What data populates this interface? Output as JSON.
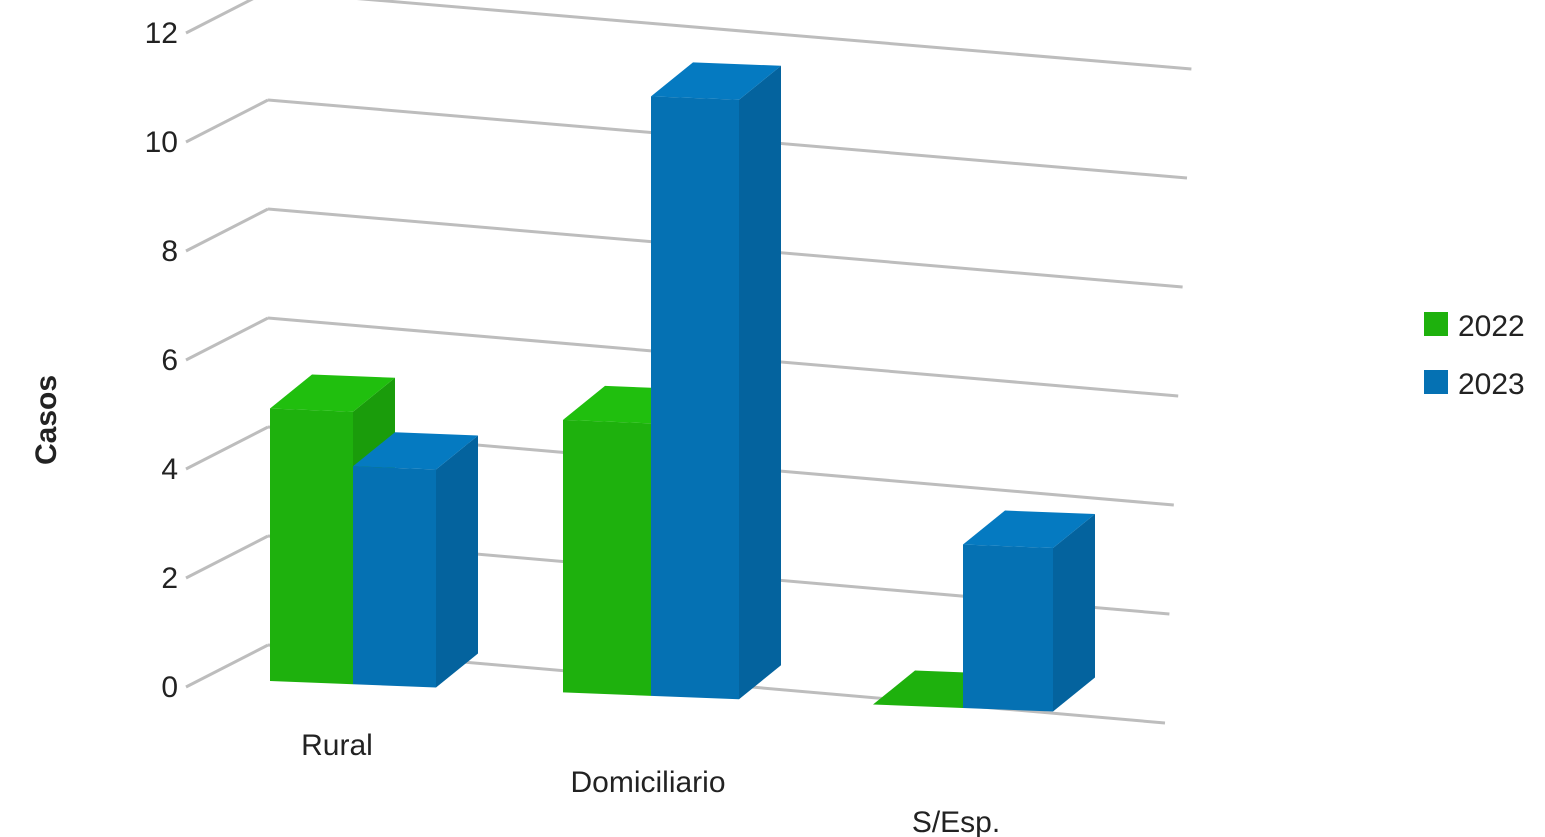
{
  "chart_data": {
    "type": "bar",
    "title": "",
    "xlabel": "",
    "ylabel": "Casos",
    "ylim": [
      0,
      12
    ],
    "yticks": [
      0,
      2,
      4,
      6,
      8,
      10,
      12
    ],
    "grid": true,
    "legend_position": "right",
    "categories": [
      "Rural",
      "Domiciliario",
      "S/Esp."
    ],
    "series": [
      {
        "name": "2022",
        "color": "#1eb10d",
        "values": [
          5,
          5,
          0
        ]
      },
      {
        "name": "2023",
        "color": "#0571b3",
        "values": [
          4,
          11,
          3
        ]
      }
    ]
  }
}
